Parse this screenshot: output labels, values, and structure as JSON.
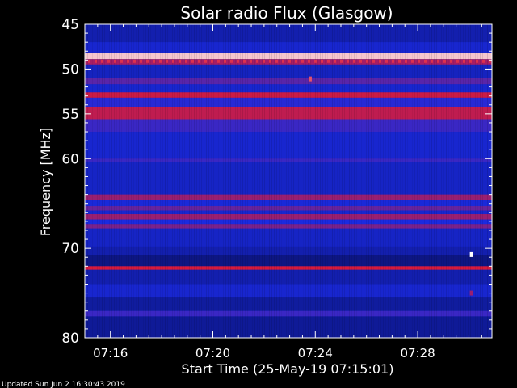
{
  "chart_data": {
    "type": "heatmap",
    "title": "Solar radio Flux (Glasgow)",
    "xlabel": "Start Time (25-May-19 07:15:01)",
    "ylabel": "Frequency [MHz]",
    "footer": "Updated Sun Jun  2 16:30:43 2019",
    "xlim": [
      0,
      15.9
    ],
    "ylim": [
      45,
      80
    ],
    "y_inverted": true,
    "x_ticks": [
      {
        "value": 1,
        "label": "07:16"
      },
      {
        "value": 5,
        "label": "07:20"
      },
      {
        "value": 9,
        "label": "07:24"
      },
      {
        "value": 13,
        "label": "07:28"
      }
    ],
    "y_ticks": [
      {
        "value": 45,
        "label": "45"
      },
      {
        "value": 50,
        "label": "50"
      },
      {
        "value": 55,
        "label": "55"
      },
      {
        "value": 60,
        "label": "60"
      },
      {
        "value": 70,
        "label": "70"
      },
      {
        "value": 80,
        "label": "80"
      }
    ],
    "colors": {
      "background": "#000000",
      "low": "#02063a",
      "mid": "#1a2ae0",
      "high": "#d81a3a",
      "saturated": "#ffffff"
    },
    "bands": [
      {
        "f1": 45.0,
        "f2": 47.0,
        "level": 0.35
      },
      {
        "f1": 47.0,
        "f2": 48.2,
        "level": 0.45
      },
      {
        "f1": 48.2,
        "f2": 48.9,
        "level": 0.95
      },
      {
        "f1": 48.9,
        "f2": 49.5,
        "level": 0.72
      },
      {
        "f1": 49.5,
        "f2": 51.0,
        "level": 0.4
      },
      {
        "f1": 51.0,
        "f2": 51.7,
        "level": 0.6
      },
      {
        "f1": 51.7,
        "f2": 52.6,
        "level": 0.45
      },
      {
        "f1": 52.6,
        "f2": 53.2,
        "level": 0.78
      },
      {
        "f1": 53.2,
        "f2": 54.2,
        "level": 0.52
      },
      {
        "f1": 54.2,
        "f2": 55.6,
        "level": 0.76
      },
      {
        "f1": 55.6,
        "f2": 57.0,
        "level": 0.55
      },
      {
        "f1": 57.0,
        "f2": 60.0,
        "level": 0.45
      },
      {
        "f1": 60.0,
        "f2": 60.4,
        "level": 0.55
      },
      {
        "f1": 60.4,
        "f2": 64.0,
        "level": 0.42
      },
      {
        "f1": 64.0,
        "f2": 64.6,
        "level": 0.7
      },
      {
        "f1": 64.6,
        "f2": 65.3,
        "level": 0.48
      },
      {
        "f1": 65.3,
        "f2": 65.8,
        "level": 0.62
      },
      {
        "f1": 65.8,
        "f2": 66.2,
        "level": 0.45
      },
      {
        "f1": 66.2,
        "f2": 66.8,
        "level": 0.7
      },
      {
        "f1": 66.8,
        "f2": 67.3,
        "level": 0.5
      },
      {
        "f1": 67.3,
        "f2": 67.8,
        "level": 0.65
      },
      {
        "f1": 67.8,
        "f2": 69.8,
        "level": 0.42
      },
      {
        "f1": 69.8,
        "f2": 70.8,
        "level": 0.35
      },
      {
        "f1": 70.8,
        "f2": 72.0,
        "level": 0.22
      },
      {
        "f1": 72.0,
        "f2": 72.4,
        "level": 0.8
      },
      {
        "f1": 72.4,
        "f2": 74.0,
        "level": 0.35
      },
      {
        "f1": 74.0,
        "f2": 75.5,
        "level": 0.45
      },
      {
        "f1": 75.5,
        "f2": 77.0,
        "level": 0.3
      },
      {
        "f1": 77.0,
        "f2": 77.6,
        "level": 0.55
      },
      {
        "f1": 77.6,
        "f2": 80.0,
        "level": 0.28
      }
    ],
    "spots": [
      {
        "t": 8.8,
        "f": 51.1,
        "level": 0.85
      },
      {
        "t": 15.1,
        "f": 70.7,
        "level": 1.0
      },
      {
        "t": 15.1,
        "f": 75.0,
        "level": 0.7
      }
    ]
  }
}
